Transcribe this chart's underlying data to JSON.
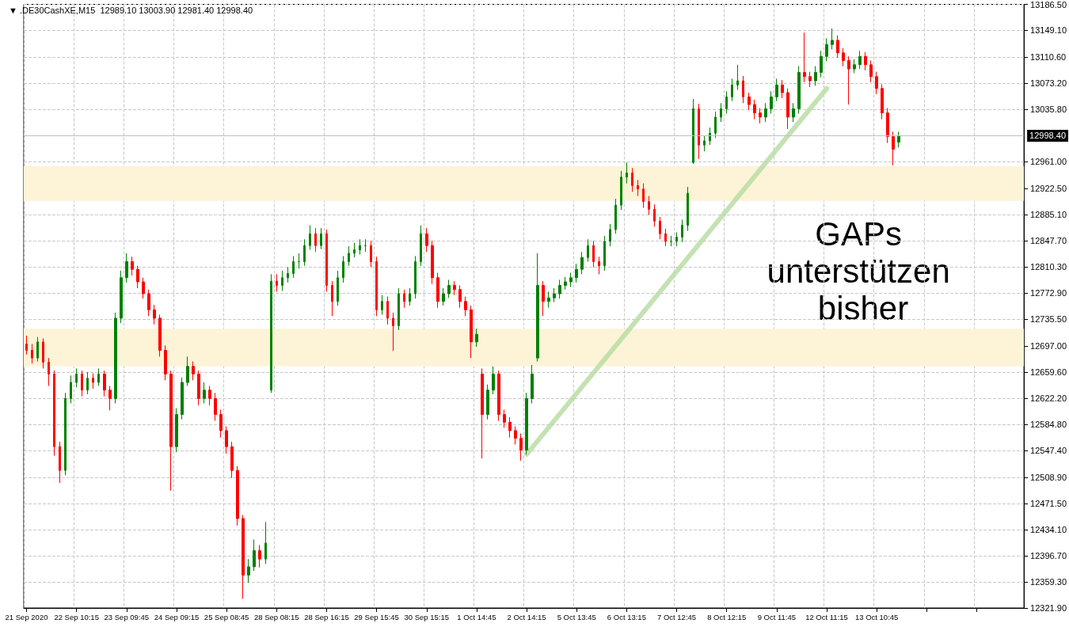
{
  "chart_data": {
    "type": "candlestick",
    "title": "▼ .DE30CashXE,M15  12989.10 13003.90 12981.40 12998.40",
    "categories": [
      "21 Sep 2020",
      null,
      null,
      null,
      null,
      null,
      null,
      null,
      null,
      "22 Sep 10:15",
      null,
      null,
      null,
      null,
      null,
      null,
      null,
      null,
      "23 Sep 09:45",
      null,
      null,
      null,
      null,
      null,
      null,
      null,
      null,
      "24 Sep 09:15",
      null,
      null,
      null,
      null,
      null,
      null,
      null,
      null,
      "25 Sep 08:45",
      null,
      null,
      null,
      null,
      null,
      null,
      null,
      null,
      "28 Sep 08:15",
      null,
      null,
      null,
      null,
      null,
      null,
      null,
      null,
      "28 Sep 16:15",
      null,
      null,
      null,
      null,
      null,
      null,
      null,
      null,
      "29 Sep 15:45",
      null,
      null,
      null,
      null,
      null,
      null,
      null,
      null,
      "30 Sep 15:15",
      null,
      null,
      null,
      null,
      null,
      null,
      null,
      null,
      "1 Oct 14:45",
      null,
      null,
      null,
      null,
      null,
      null,
      null,
      null,
      "2 Oct 14:15",
      null,
      null,
      null,
      null,
      null,
      null,
      null,
      null,
      "5 Oct 13:45",
      null,
      null,
      null,
      null,
      null,
      null,
      null,
      null,
      "6 Oct 13:15",
      null,
      null,
      null,
      null,
      null,
      null,
      null,
      null,
      "7 Oct 12:45",
      null,
      null,
      null,
      null,
      null,
      null,
      null,
      null,
      "8 Oct 12:15",
      null,
      null,
      null,
      null,
      null,
      null,
      null,
      null,
      "9 Oct 11:45",
      null,
      null,
      null,
      null,
      null,
      null,
      null,
      null,
      "12 Oct 11:15",
      null,
      null,
      null,
      null,
      null,
      null,
      null,
      null,
      "13 Oct 10:45",
      null,
      null,
      null,
      null,
      null,
      null,
      null,
      null,
      null,
      null,
      null,
      null,
      null,
      null,
      null,
      null,
      null,
      null,
      null,
      null,
      null,
      null,
      null,
      null,
      null,
      null
    ],
    "ohlc": [
      [
        12700,
        12712,
        12685,
        12691
      ],
      [
        12691,
        12700,
        12672,
        12680
      ],
      [
        12680,
        12710,
        12675,
        12703
      ],
      [
        12703,
        12708,
        12665,
        12674
      ],
      [
        12674,
        12680,
        12640,
        12657
      ],
      [
        12657,
        12662,
        12540,
        12553
      ],
      [
        12553,
        12560,
        12501,
        12519
      ],
      [
        12519,
        12630,
        12512,
        12622
      ],
      [
        12622,
        12655,
        12615,
        12645
      ],
      [
        12645,
        12665,
        12638,
        12657
      ],
      [
        12657,
        12662,
        12625,
        12634
      ],
      [
        12634,
        12660,
        12628,
        12651
      ],
      [
        12651,
        12658,
        12636,
        12645
      ],
      [
        12645,
        12665,
        12640,
        12657
      ],
      [
        12657,
        12662,
        12625,
        12634
      ],
      [
        12634,
        12640,
        12605,
        12622
      ],
      [
        12622,
        12745,
        12615,
        12737
      ],
      [
        12737,
        12805,
        12730,
        12795
      ],
      [
        12795,
        12830,
        12788,
        12818
      ],
      [
        12818,
        12825,
        12798,
        12807
      ],
      [
        12807,
        12812,
        12780,
        12789
      ],
      [
        12789,
        12795,
        12765,
        12772
      ],
      [
        12772,
        12778,
        12740,
        12749
      ],
      [
        12749,
        12756,
        12728,
        12737
      ],
      [
        12737,
        12742,
        12682,
        12691
      ],
      [
        12691,
        12698,
        12648,
        12657
      ],
      [
        12657,
        12662,
        12490,
        12553
      ],
      [
        12553,
        12608,
        12545,
        12599
      ],
      [
        12599,
        12652,
        12592,
        12645
      ],
      [
        12645,
        12682,
        12640,
        12668
      ],
      [
        12668,
        12675,
        12648,
        12657
      ],
      [
        12657,
        12662,
        12612,
        12622
      ],
      [
        12622,
        12645,
        12615,
        12634
      ],
      [
        12634,
        12640,
        12612,
        12622
      ],
      [
        12622,
        12630,
        12590,
        12599
      ],
      [
        12599,
        12606,
        12566,
        12576
      ],
      [
        12576,
        12582,
        12543,
        12553
      ],
      [
        12553,
        12560,
        12508,
        12519
      ],
      [
        12519,
        12525,
        12440,
        12450
      ],
      [
        12450,
        12455,
        12335,
        12369
      ],
      [
        12369,
        12392,
        12358,
        12381
      ],
      [
        12381,
        12420,
        12375,
        12404
      ],
      [
        12404,
        12412,
        12380,
        12392
      ],
      [
        12392,
        12445,
        12385,
        12415
      ],
      [
        12634,
        12800,
        12630,
        12790
      ],
      [
        12790,
        12800,
        12775,
        12784
      ],
      [
        12784,
        12805,
        12776,
        12795
      ],
      [
        12795,
        12810,
        12788,
        12801
      ],
      [
        12801,
        12826,
        12795,
        12818
      ],
      [
        12818,
        12830,
        12808,
        12818
      ],
      [
        12818,
        12850,
        12812,
        12841
      ],
      [
        12841,
        12870,
        12835,
        12858
      ],
      [
        12858,
        12866,
        12832,
        12841
      ],
      [
        12841,
        12866,
        12836,
        12858
      ],
      [
        12858,
        12864,
        12775,
        12784
      ],
      [
        12784,
        12790,
        12740,
        12761
      ],
      [
        12761,
        12805,
        12755,
        12795
      ],
      [
        12795,
        12826,
        12788,
        12818
      ],
      [
        12818,
        12840,
        12812,
        12830
      ],
      [
        12830,
        12845,
        12824,
        12835
      ],
      [
        12835,
        12850,
        12828,
        12841
      ],
      [
        12841,
        12850,
        12832,
        12841
      ],
      [
        12841,
        12848,
        12810,
        12818
      ],
      [
        12818,
        12825,
        12740,
        12749
      ],
      [
        12749,
        12770,
        12742,
        12761
      ],
      [
        12761,
        12768,
        12728,
        12737
      ],
      [
        12737,
        12745,
        12690,
        12726
      ],
      [
        12726,
        12780,
        12720,
        12772
      ],
      [
        12772,
        12778,
        12752,
        12761
      ],
      [
        12761,
        12780,
        12755,
        12772
      ],
      [
        12772,
        12826,
        12765,
        12818
      ],
      [
        12818,
        12870,
        12812,
        12858
      ],
      [
        12858,
        12866,
        12832,
        12841
      ],
      [
        12841,
        12848,
        12786,
        12795
      ],
      [
        12795,
        12802,
        12752,
        12761
      ],
      [
        12761,
        12780,
        12755,
        12772
      ],
      [
        12772,
        12792,
        12766,
        12784
      ],
      [
        12784,
        12790,
        12770,
        12778
      ],
      [
        12778,
        12784,
        12752,
        12761
      ],
      [
        12761,
        12768,
        12740,
        12749
      ],
      [
        12749,
        12755,
        12680,
        12703
      ],
      [
        12703,
        12722,
        12696,
        12714
      ],
      [
        12657,
        12665,
        12536,
        12599
      ],
      [
        12599,
        12642,
        12592,
        12634
      ],
      [
        12634,
        12668,
        12628,
        12657
      ],
      [
        12657,
        12662,
        12590,
        12599
      ],
      [
        12599,
        12606,
        12580,
        12588
      ],
      [
        12588,
        12595,
        12566,
        12576
      ],
      [
        12576,
        12582,
        12556,
        12565
      ],
      [
        12565,
        12572,
        12533,
        12548
      ],
      [
        12548,
        12630,
        12542,
        12622
      ],
      [
        12622,
        12670,
        12615,
        12657
      ],
      [
        12680,
        12830,
        12675,
        12784
      ],
      [
        12784,
        12790,
        12740,
        12761
      ],
      [
        12761,
        12775,
        12752,
        12766
      ],
      [
        12766,
        12780,
        12760,
        12772
      ],
      [
        12772,
        12792,
        12765,
        12784
      ],
      [
        12784,
        12796,
        12778,
        12789
      ],
      [
        12789,
        12802,
        12782,
        12795
      ],
      [
        12795,
        12815,
        12788,
        12807
      ],
      [
        12807,
        12832,
        12800,
        12824
      ],
      [
        12824,
        12850,
        12818,
        12841
      ],
      [
        12841,
        12848,
        12810,
        12818
      ],
      [
        12818,
        12825,
        12800,
        12812
      ],
      [
        12812,
        12855,
        12805,
        12847
      ],
      [
        12847,
        12872,
        12840,
        12864
      ],
      [
        12864,
        12908,
        12858,
        12899
      ],
      [
        12899,
        12948,
        12892,
        12939
      ],
      [
        12939,
        12960,
        12930,
        12945
      ],
      [
        12945,
        12952,
        12918,
        12927
      ],
      [
        12927,
        12935,
        12912,
        12922
      ],
      [
        12922,
        12930,
        12895,
        12904
      ],
      [
        12904,
        12912,
        12885,
        12893
      ],
      [
        12893,
        12900,
        12868,
        12876
      ],
      [
        12876,
        12882,
        12850,
        12858
      ],
      [
        12858,
        12865,
        12840,
        12847
      ],
      [
        12847,
        12855,
        12840,
        12847
      ],
      [
        12847,
        12860,
        12840,
        12853
      ],
      [
        12853,
        12878,
        12846,
        12870
      ],
      [
        12870,
        12925,
        12862,
        12916
      ],
      [
        12960,
        13051,
        12958,
        13037
      ],
      [
        13037,
        13044,
        12965,
        12985
      ],
      [
        12985,
        12998,
        12976,
        12991
      ],
      [
        12991,
        13010,
        12985,
        13002
      ],
      [
        13002,
        13033,
        12995,
        13025
      ],
      [
        13025,
        13045,
        13018,
        13037
      ],
      [
        13037,
        13062,
        13030,
        13054
      ],
      [
        13054,
        13080,
        13048,
        13071
      ],
      [
        13071,
        13100,
        13064,
        13077
      ],
      [
        13077,
        13084,
        13045,
        13054
      ],
      [
        13054,
        13060,
        13035,
        13043
      ],
      [
        13043,
        13050,
        13022,
        13031
      ],
      [
        13031,
        13038,
        13016,
        13025
      ],
      [
        13025,
        13045,
        13018,
        13037
      ],
      [
        13037,
        13062,
        13030,
        13054
      ],
      [
        13054,
        13080,
        13048,
        13071
      ],
      [
        13071,
        13078,
        13052,
        13060
      ],
      [
        13060,
        13066,
        13008,
        13025
      ],
      [
        13025,
        13045,
        13018,
        13037
      ],
      [
        13037,
        13098,
        13030,
        13089
      ],
      [
        13089,
        13146,
        13075,
        13083
      ],
      [
        13083,
        13090,
        13068,
        13077
      ],
      [
        13077,
        13098,
        13070,
        13089
      ],
      [
        13089,
        13120,
        13082,
        13112
      ],
      [
        13112,
        13138,
        13105,
        13129
      ],
      [
        13129,
        13152,
        13122,
        13135
      ],
      [
        13135,
        13142,
        13110,
        13117
      ],
      [
        13117,
        13124,
        13098,
        13106
      ],
      [
        13106,
        13112,
        13043,
        13094
      ],
      [
        13094,
        13108,
        13088,
        13100
      ],
      [
        13100,
        13120,
        13094,
        13112
      ],
      [
        13112,
        13118,
        13092,
        13100
      ],
      [
        13100,
        13106,
        13075,
        13083
      ],
      [
        13083,
        13090,
        13058,
        13066
      ],
      [
        13066,
        13072,
        13022,
        13031
      ],
      [
        13031,
        13038,
        12988,
        12997
      ],
      [
        12997,
        13004,
        12956,
        12979
      ],
      [
        12989.1,
        13003.9,
        12981.4,
        12998.4
      ],
      null,
      null,
      null,
      null,
      null,
      null,
      null,
      null,
      null,
      null,
      null,
      null,
      null,
      null,
      null,
      null,
      null,
      null,
      null,
      null,
      null,
      null
    ],
    "colors": [
      "#ff0000",
      "#ff0000",
      "#008000",
      "#ff0000",
      "#ff0000",
      "#ff0000",
      "#ff0000",
      "#008000",
      "#008000",
      "#008000",
      "#ff0000",
      "#008000",
      "#ff0000",
      "#008000",
      "#ff0000",
      "#ff0000",
      "#008000",
      "#008000",
      "#008000",
      "#ff0000",
      "#ff0000",
      "#ff0000",
      "#ff0000",
      "#ff0000",
      "#ff0000",
      "#ff0000",
      "#ff0000",
      "#008000",
      "#008000",
      "#008000",
      "#ff0000",
      "#ff0000",
      "#008000",
      "#ff0000",
      "#ff0000",
      "#ff0000",
      "#ff0000",
      "#ff0000",
      "#ff0000",
      "#ff0000",
      "#008000",
      "#008000",
      "#ff0000",
      "#008000",
      "#008000",
      "#ff0000",
      "#008000",
      "#008000",
      "#008000",
      "#008000",
      "#008000",
      "#008000",
      "#ff0000",
      "#008000",
      "#ff0000",
      "#ff0000",
      "#008000",
      "#008000",
      "#008000",
      "#008000",
      "#008000",
      "#008000",
      "#ff0000",
      "#ff0000",
      "#008000",
      "#ff0000",
      "#ff0000",
      "#008000",
      "#ff0000",
      "#008000",
      "#008000",
      "#008000",
      "#ff0000",
      "#ff0000",
      "#ff0000",
      "#008000",
      "#008000",
      "#ff0000",
      "#ff0000",
      "#ff0000",
      "#ff0000",
      "#008000",
      "#ff0000",
      "#008000",
      "#008000",
      "#ff0000",
      "#ff0000",
      "#ff0000",
      "#ff0000",
      "#ff0000",
      "#008000",
      "#008000",
      "#008000",
      "#ff0000",
      "#008000",
      "#008000",
      "#008000",
      "#008000",
      "#008000",
      "#008000",
      "#008000",
      "#008000",
      "#ff0000",
      "#ff0000",
      "#008000",
      "#008000",
      "#008000",
      "#008000",
      "#008000",
      "#ff0000",
      "#ff0000",
      "#ff0000",
      "#ff0000",
      "#ff0000",
      "#ff0000",
      "#ff0000",
      "#008000",
      "#008000",
      "#008000",
      "#008000",
      "#008000",
      "#ff0000",
      "#008000",
      "#008000",
      "#008000",
      "#008000",
      "#008000",
      "#008000",
      "#008000",
      "#ff0000",
      "#ff0000",
      "#ff0000",
      "#ff0000",
      "#008000",
      "#008000",
      "#008000",
      "#ff0000",
      "#ff0000",
      "#008000",
      "#008000",
      "#ff0000",
      "#ff0000",
      "#008000",
      "#008000",
      "#008000",
      "#008000",
      "#ff0000",
      "#ff0000",
      "#ff0000",
      "#008000",
      "#008000",
      "#ff0000",
      "#ff0000",
      "#ff0000",
      "#ff0000",
      "#ff0000",
      "#ff0000",
      "#008000",
      null,
      null,
      null,
      null,
      null,
      null,
      null,
      null,
      null,
      null,
      null,
      null,
      null,
      null,
      null,
      null,
      null,
      null,
      null,
      null,
      null,
      null
    ],
    "series": [
      {
        "type": "line",
        "color": "#b5dba0",
        "x": [
          "2 Oct 14:15",
          "12 Oct 11:15"
        ],
        "values": [
          12542,
          13066
        ]
      }
    ],
    "ylim": [
      12321.9,
      13186.5
    ],
    "yticks": [
      {
        "value": 12321.9,
        "label": "12321.90"
      },
      {
        "value": 12359.3,
        "label": "12359.30"
      },
      {
        "value": 12396.7,
        "label": "12396.70"
      },
      {
        "value": 12434.1,
        "label": "12434.10"
      },
      {
        "value": 12471.5,
        "label": "12471.50"
      },
      {
        "value": 12508.9,
        "label": "12508.90"
      },
      {
        "value": 12547.4,
        "label": "12547.40"
      },
      {
        "value": 12584.8,
        "label": "12584.80"
      },
      {
        "value": 12622.2,
        "label": "12622.20"
      },
      {
        "value": 12659.6,
        "label": "12659.60"
      },
      {
        "value": 12697,
        "label": "12697.00"
      },
      {
        "value": 12735.5,
        "label": "12735.50"
      },
      {
        "value": 12772.9,
        "label": "12772.90"
      },
      {
        "value": 12810.3,
        "label": "12810.30"
      },
      {
        "value": 12847.7,
        "label": "12847.70"
      },
      {
        "value": 12885.1,
        "label": "12885.10"
      },
      {
        "value": 12922.5,
        "label": "12922.50"
      },
      {
        "value": 12961,
        "label": "12961.00"
      },
      {
        "value": 13035.8,
        "label": "13035.80"
      },
      {
        "value": 13073.2,
        "label": "13073.20"
      },
      {
        "value": 13110.6,
        "label": "13110.60"
      },
      {
        "value": 13149.1,
        "label": "13149.10"
      },
      {
        "value": 13186.5,
        "label": "13186.50"
      }
    ],
    "grid": true,
    "ref_lines": [
      {
        "axis": "y",
        "value": 12998.4,
        "label": "12998.40",
        "color": "#c0c0c0"
      }
    ],
    "bands": [
      {
        "axis": "y",
        "from": 12905,
        "to": 12955,
        "color": "#fdf3d6"
      },
      {
        "axis": "y",
        "from": 12668,
        "to": 12722,
        "color": "#fdf3d6"
      }
    ],
    "annotations": [
      "GAPs unterstützen bisher"
    ]
  }
}
